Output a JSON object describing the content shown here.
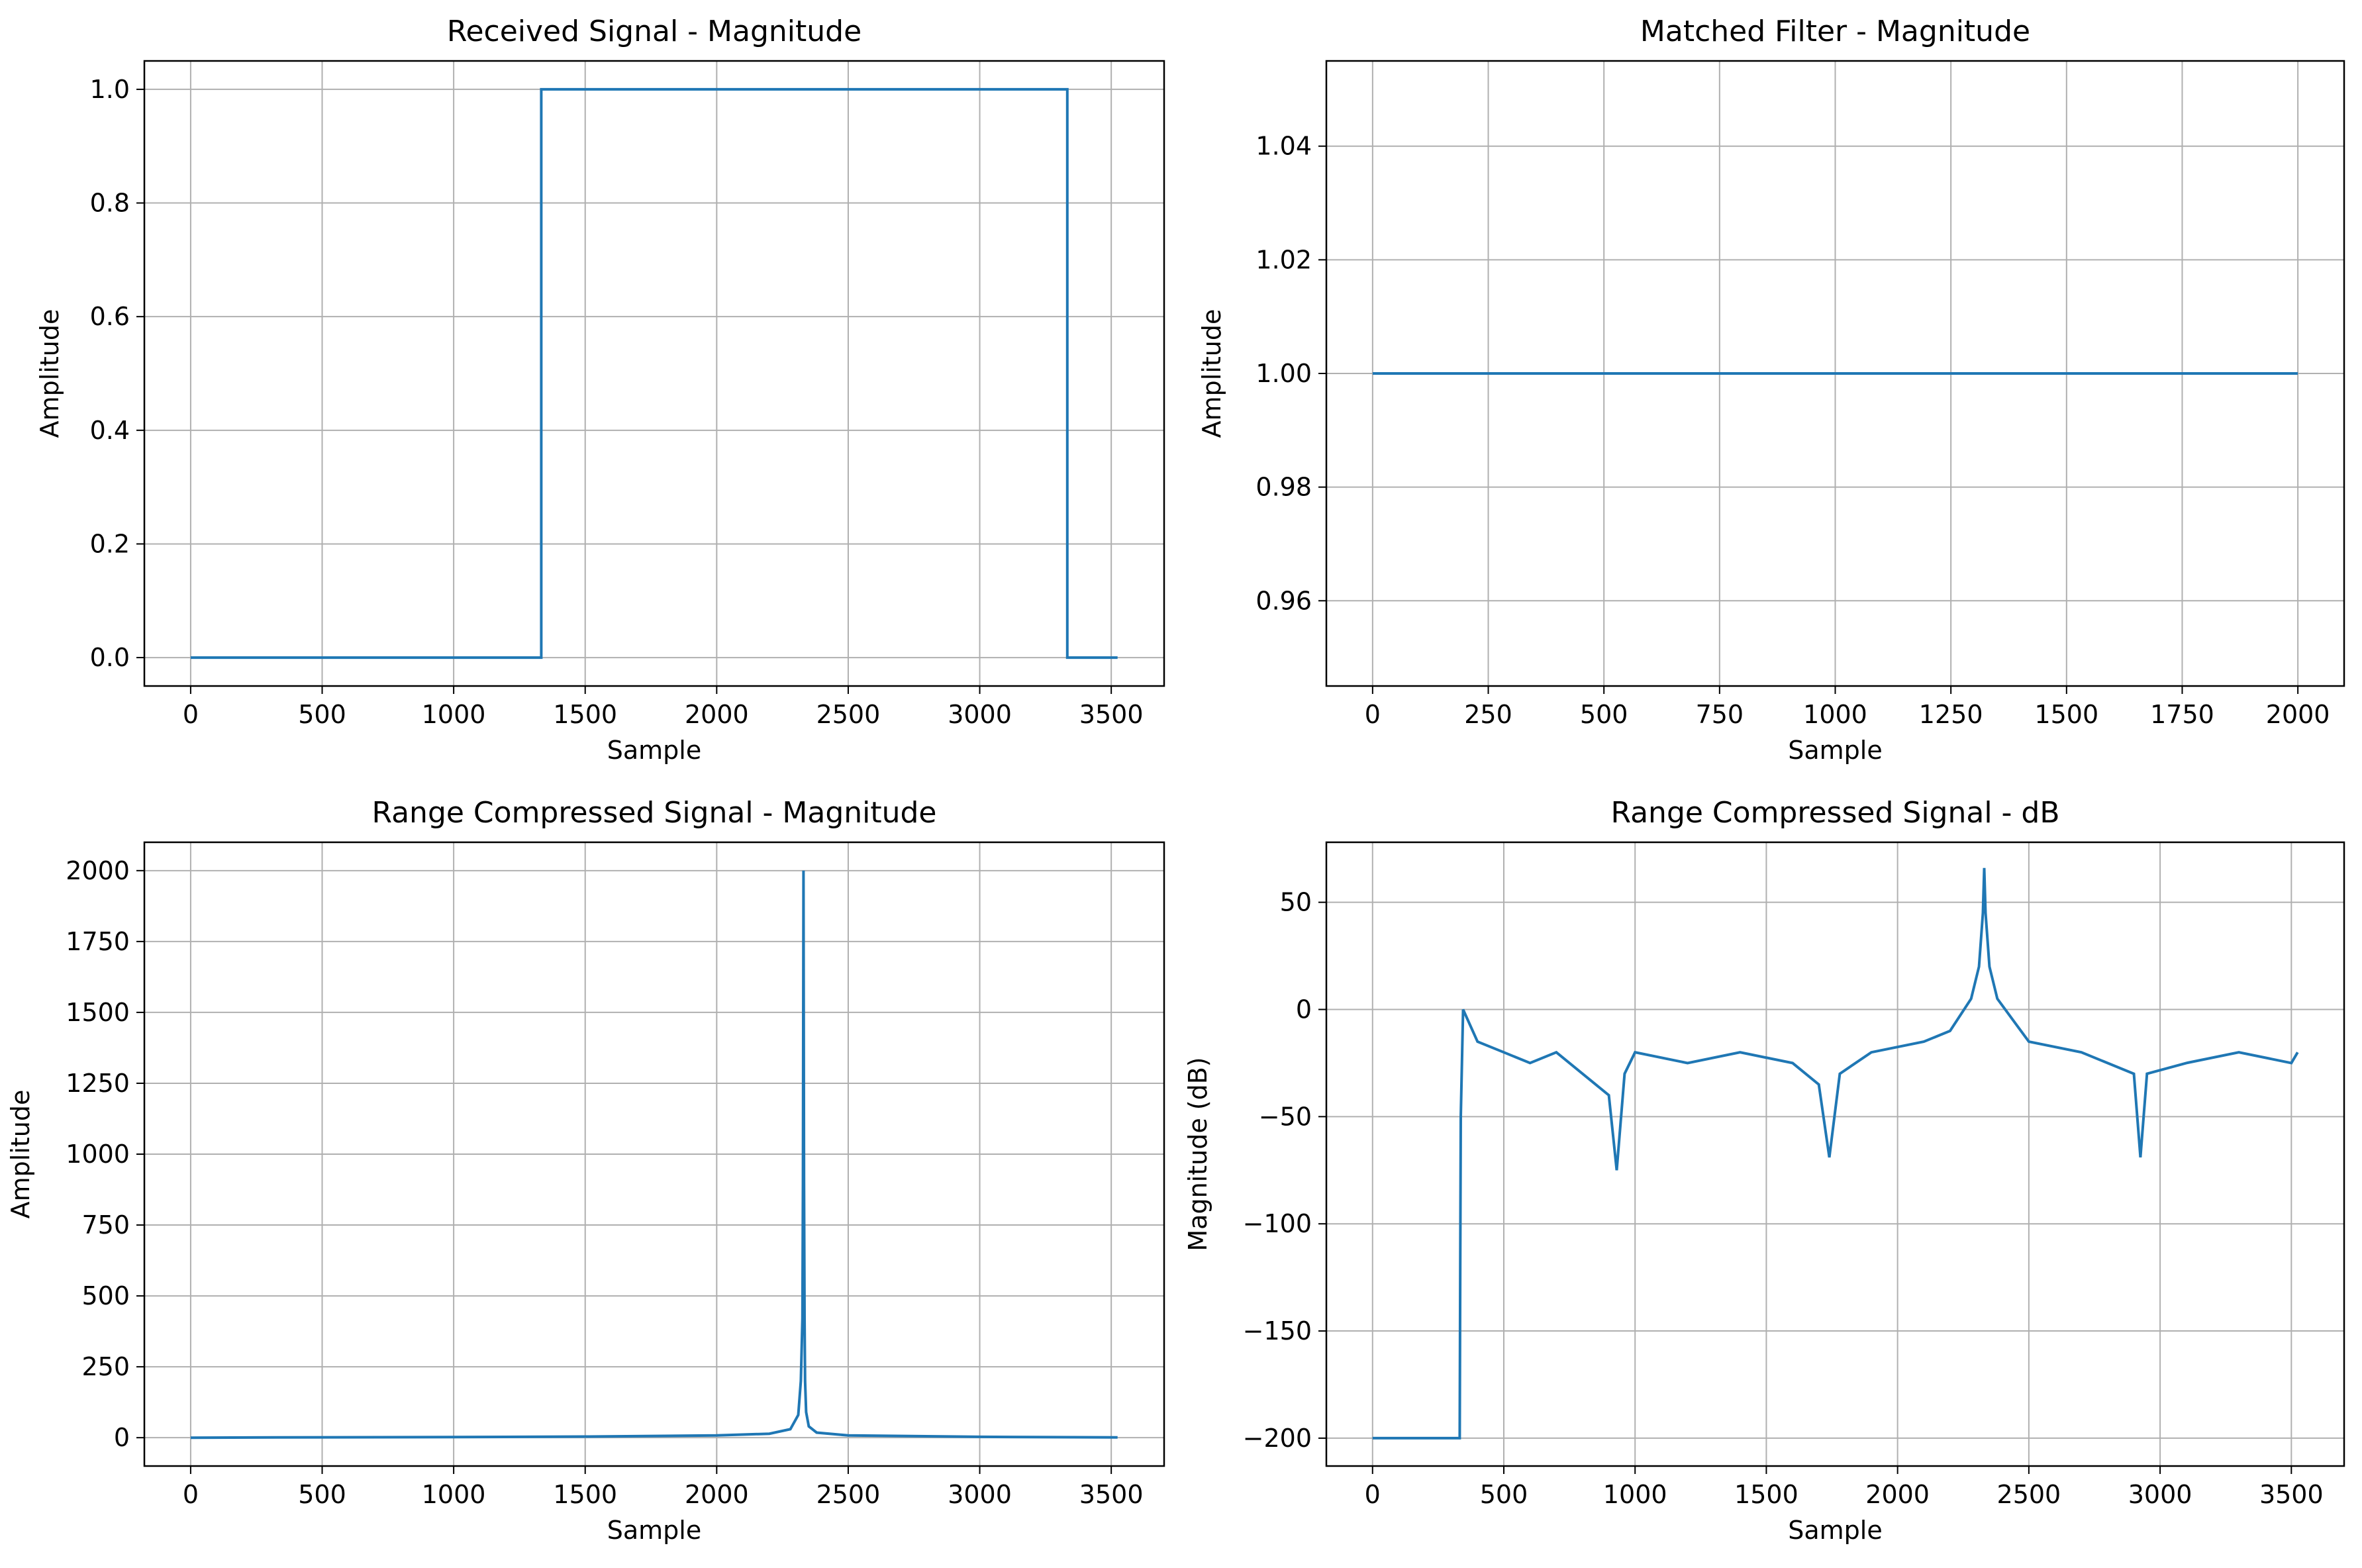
{
  "figure": {
    "background": "#ffffff",
    "line_color": "#1f77b4",
    "grid_color": "#b0b0b0"
  },
  "chart_data": [
    {
      "type": "line",
      "title": "Received Signal - Magnitude",
      "xlabel": "Sample",
      "ylabel": "Amplitude",
      "xlim": [
        -176,
        3701
      ],
      "ylim": [
        -0.05,
        1.05
      ],
      "xticks": [
        0,
        500,
        1000,
        1500,
        2000,
        2500,
        3000,
        3500
      ],
      "yticks": [
        0.0,
        0.2,
        0.4,
        0.6,
        0.8,
        1.0
      ],
      "ytick_labels": [
        "0.0",
        "0.2",
        "0.4",
        "0.6",
        "0.8",
        "1.0"
      ],
      "grid": true,
      "series": [
        {
          "x": [
            0,
            1333,
            1333,
            3333,
            3333,
            3524
          ],
          "y": [
            0,
            0,
            1,
            1,
            0,
            0
          ]
        }
      ]
    },
    {
      "type": "line",
      "title": "Matched Filter - Magnitude",
      "xlabel": "Sample",
      "ylabel": "Amplitude",
      "xlim": [
        -100,
        2100
      ],
      "ylim": [
        0.945,
        1.055
      ],
      "xticks": [
        0,
        250,
        500,
        750,
        1000,
        1250,
        1500,
        1750,
        2000
      ],
      "yticks": [
        0.96,
        0.98,
        1.0,
        1.02,
        1.04
      ],
      "ytick_labels": [
        "0.96",
        "0.98",
        "1.00",
        "1.02",
        "1.04"
      ],
      "grid": true,
      "series": [
        {
          "x": [
            0,
            2000
          ],
          "y": [
            1.0,
            1.0
          ]
        }
      ]
    },
    {
      "type": "line",
      "title": "Range Compressed Signal - Magnitude",
      "xlabel": "Sample",
      "ylabel": "Amplitude",
      "xlim": [
        -176,
        3701
      ],
      "ylim": [
        -100,
        2100
      ],
      "xticks": [
        0,
        500,
        1000,
        1500,
        2000,
        2500,
        3000,
        3500
      ],
      "yticks": [
        0,
        250,
        500,
        750,
        1000,
        1250,
        1500,
        1750,
        2000
      ],
      "ytick_labels": [
        "0",
        "250",
        "500",
        "750",
        "1000",
        "1250",
        "1500",
        "1750",
        "2000"
      ],
      "grid": true,
      "series": [
        {
          "x": [
            0,
            330,
            1000,
            1500,
            2000,
            2200,
            2280,
            2310,
            2320,
            2326,
            2328,
            2330,
            2332,
            2334,
            2336,
            2340,
            2350,
            2380,
            2500,
            3000,
            3524
          ],
          "y": [
            0,
            1,
            2,
            4,
            8,
            14,
            30,
            80,
            200,
            420,
            900,
            2000,
            900,
            420,
            200,
            90,
            40,
            18,
            8,
            3,
            1
          ]
        }
      ]
    },
    {
      "type": "line",
      "title": "Range Compressed Signal - dB",
      "xlabel": "Sample",
      "ylabel": "Magnitude (dB)",
      "xlim": [
        -176,
        3701
      ],
      "ylim": [
        -213,
        78
      ],
      "xticks": [
        0,
        500,
        1000,
        1500,
        2000,
        2500,
        3000,
        3500
      ],
      "yticks": [
        -200,
        -150,
        -100,
        -50,
        0,
        50
      ],
      "ytick_labels": [
        "−200",
        "−150",
        "−100",
        "−50",
        "0",
        "50"
      ],
      "grid": true,
      "series": [
        {
          "x": [
            0,
            332,
            334,
            336,
            345,
            400,
            500,
            600,
            700,
            800,
            900,
            930,
            960,
            1000,
            1200,
            1400,
            1600,
            1700,
            1740,
            1780,
            1900,
            2100,
            2200,
            2280,
            2310,
            2325,
            2330,
            2335,
            2350,
            2380,
            2500,
            2700,
            2900,
            2925,
            2950,
            3100,
            3300,
            3500,
            3524
          ],
          "y": [
            -200,
            -200,
            -120,
            -50,
            0,
            -15,
            -20,
            -25,
            -20,
            -30,
            -40,
            -75,
            -30,
            -20,
            -25,
            -20,
            -25,
            -35,
            -69,
            -30,
            -20,
            -15,
            -10,
            5,
            20,
            45,
            66,
            45,
            20,
            5,
            -15,
            -20,
            -30,
            -69,
            -30,
            -25,
            -20,
            -25,
            -20
          ]
        }
      ]
    }
  ]
}
